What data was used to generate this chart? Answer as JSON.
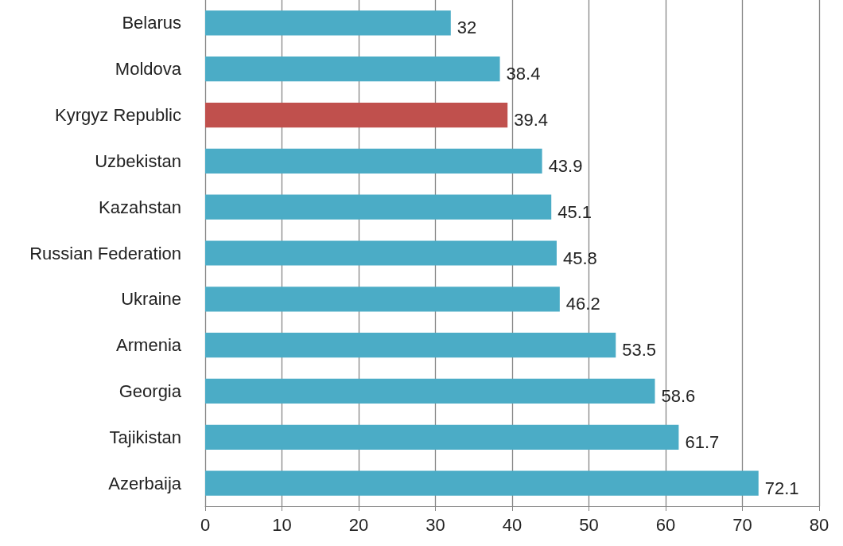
{
  "chart_data": {
    "type": "bar",
    "orientation": "horizontal",
    "categories": [
      "Belarus",
      "Moldova",
      "Kyrgyz Republic",
      "Uzbekistan",
      "Kazahstan",
      "Russian Federation",
      "Ukraine",
      "Armenia",
      "Georgia",
      "Tajikistan",
      "Azerbaija"
    ],
    "values": [
      32,
      38.4,
      39.4,
      43.9,
      45.1,
      45.8,
      46.2,
      53.5,
      58.6,
      61.7,
      72.1
    ],
    "colors": [
      "#4bacc6",
      "#4bacc6",
      "#c0504d",
      "#4bacc6",
      "#4bacc6",
      "#4bacc6",
      "#4bacc6",
      "#4bacc6",
      "#4bacc6",
      "#4bacc6",
      "#4bacc6"
    ],
    "xlim": [
      0,
      80
    ],
    "xticks": [
      0,
      10,
      20,
      30,
      40,
      50,
      60,
      70,
      80
    ],
    "grid": "x",
    "data_labels": true
  }
}
